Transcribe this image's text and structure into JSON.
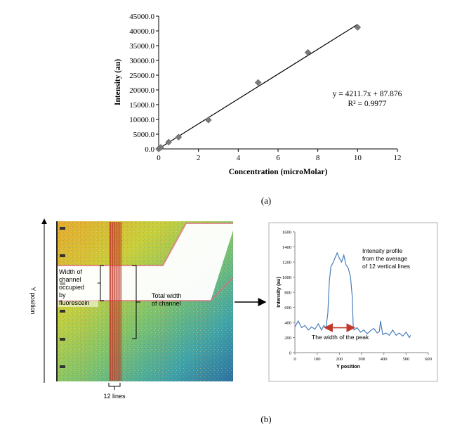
{
  "chart_data": [
    {
      "type": "scatter",
      "title": "",
      "xlabel": "Concentration (microMolar)",
      "ylabel": "Intensity (au)",
      "xlim": [
        0,
        12
      ],
      "ylim": [
        0,
        45000
      ],
      "x_ticks": [
        "0",
        "2",
        "4",
        "6",
        "8",
        "10",
        "12"
      ],
      "y_ticks": [
        "0.0",
        "5000.0",
        "10000.0",
        "15000.0",
        "20000.0",
        "25000.0",
        "30000.0",
        "35000.0",
        "40000.0",
        "45000.0"
      ],
      "points": [
        {
          "x": 0.0,
          "y": 0
        },
        {
          "x": 0.1,
          "y": 500
        },
        {
          "x": 0.5,
          "y": 2300
        },
        {
          "x": 1.0,
          "y": 4000
        },
        {
          "x": 2.5,
          "y": 9800
        },
        {
          "x": 5.0,
          "y": 22500
        },
        {
          "x": 7.5,
          "y": 32700
        },
        {
          "x": 10.0,
          "y": 41200
        }
      ],
      "trendline": {
        "slope": 4211.7,
        "intercept": 87.876,
        "x_range": [
          0,
          10
        ]
      },
      "equation": "y = 4211.7x + 87.876",
      "r_squared": "R² = 0.9977",
      "caption": "(a)"
    },
    {
      "type": "line",
      "title": "",
      "xlabel": "Y position",
      "ylabel": "Intensity (au)",
      "xlim": [
        0,
        600
      ],
      "ylim": [
        0,
        1600
      ],
      "x_ticks": [
        "0",
        "100",
        "200",
        "300",
        "400",
        "500",
        "600"
      ],
      "y_ticks": [
        "0",
        "200",
        "400",
        "600",
        "800",
        "1000",
        "1200",
        "1400",
        "1600"
      ],
      "series": [
        {
          "name": "Intensity profile",
          "x": [
            0,
            15,
            30,
            45,
            60,
            75,
            90,
            105,
            120,
            130,
            140,
            148,
            155,
            162,
            170,
            180,
            190,
            200,
            210,
            220,
            230,
            240,
            250,
            258,
            262,
            266,
            270,
            280,
            295,
            310,
            325,
            340,
            355,
            370,
            380,
            385,
            395,
            410,
            425,
            440,
            455,
            470,
            485,
            500,
            515,
            520
          ],
          "values": [
            340,
            420,
            330,
            360,
            300,
            340,
            310,
            380,
            300,
            360,
            330,
            520,
            950,
            1140,
            1180,
            1250,
            1320,
            1250,
            1200,
            1290,
            1160,
            1120,
            1000,
            740,
            360,
            300,
            310,
            330,
            270,
            300,
            250,
            290,
            320,
            260,
            280,
            420,
            240,
            260,
            230,
            300,
            230,
            260,
            220,
            270,
            200,
            230
          ]
        }
      ],
      "annotation_profile": "Intensity profile from the average of 12 vertical lines",
      "annotation_profile_lines": [
        "Intensity profile",
        "from the average",
        "of 12 vertical lines"
      ],
      "annotation_peak": "The width of the peak",
      "peak_arrow_x": [
        140,
        262
      ],
      "peak_arrow_y": 330
    }
  ],
  "figure_b": {
    "y_axis_label": "Y position",
    "label_width_occupied": [
      "Width of",
      "channel",
      "occupied",
      "by",
      "fluorescein"
    ],
    "label_total_width": [
      "Total width",
      "of channel"
    ],
    "label_lines": "12 lines",
    "caption": "(b)"
  },
  "colors": {
    "marker": "#7a7a7a",
    "trendline": "#000000",
    "profile_line": "#4a7ebb",
    "arrow": "#c0392b",
    "vertical_lines": "#c0392b"
  }
}
